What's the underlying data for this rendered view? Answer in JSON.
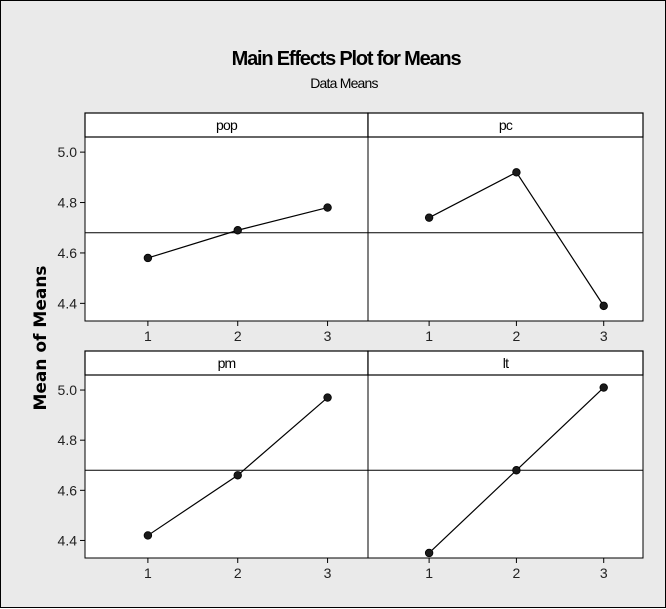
{
  "chart_data": {
    "type": "line",
    "title": "Main Effects Plot for Means",
    "subtitle": "Data Means",
    "ylabel": "Mean of Means",
    "x": [
      1,
      2,
      3
    ],
    "x_tick_labels": [
      "1",
      "2",
      "3"
    ],
    "ylim": [
      4.33,
      5.06
    ],
    "y_ticks": [
      4.4,
      4.6,
      4.8,
      5.0
    ],
    "y_tick_labels": [
      "4.4",
      "4.6",
      "4.8",
      "5.0"
    ],
    "reference_line": 4.68,
    "grid": false,
    "panels": [
      {
        "name": "pop",
        "values": [
          4.58,
          4.69,
          4.78
        ]
      },
      {
        "name": "pc",
        "values": [
          4.74,
          4.92,
          4.39
        ]
      },
      {
        "name": "pm",
        "values": [
          4.42,
          4.66,
          4.97
        ]
      },
      {
        "name": "lt",
        "values": [
          4.35,
          4.68,
          5.01
        ]
      }
    ],
    "colors": {
      "background": "#eaeaea",
      "plot_area": "#ffffff",
      "line": "#000000",
      "marker": "#1a1a1a"
    }
  }
}
